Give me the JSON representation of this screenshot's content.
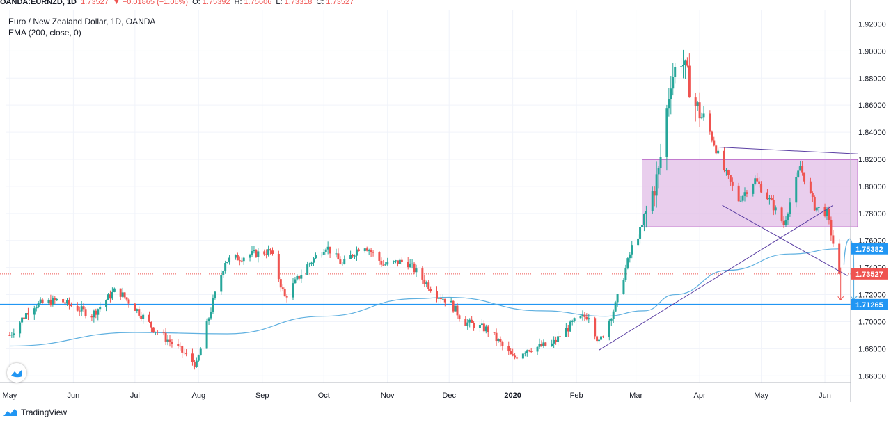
{
  "header": {
    "symbol": "OANDA:EURNZD, 1D",
    "last": "1.73527",
    "change": "▼ −0.01865 (−1.06%)",
    "o_label": "O:",
    "o": "1.75392",
    "h_label": "H:",
    "h": "1.75606",
    "l_label": "L:",
    "l": "1.73318",
    "c_label": "C:",
    "c": "1.73527"
  },
  "title": "Euro / New Zealand Dollar, 1D, OANDA",
  "indicator": "EMA (200, close, 0)",
  "footer": {
    "brand": "TradingView"
  },
  "colors": {
    "up": "#26a69a",
    "down": "#ef5350",
    "ema": "#5fb0e0",
    "support": "#2196f3",
    "box_fill": "#e1bee7",
    "box_stroke": "#9c27b0",
    "trendline": "#5b3fa3",
    "last_price_tag": "#ef5350",
    "ema_tag": "#2196f3"
  },
  "chart_data": {
    "type": "candlestick",
    "symbol": "EUR/NZD",
    "timeframe": "1D",
    "x_ticks": [
      "May",
      "Jun",
      "Jul",
      "Aug",
      "Sep",
      "Oct",
      "Nov",
      "Dec",
      "2020",
      "Feb",
      "Mar",
      "Apr",
      "May",
      "Jun"
    ],
    "y_ticks": [
      "1.92000",
      "1.90000",
      "1.88000",
      "1.86000",
      "1.84000",
      "1.82000",
      "1.80000",
      "1.78000",
      "1.76000",
      "1.74000",
      "1.72000",
      "1.70000",
      "1.68000",
      "1.66000"
    ],
    "ylim": [
      1.655,
      1.93
    ],
    "close_path": [
      [
        "2019-05-01",
        1.69
      ],
      [
        "2019-05-12",
        1.712
      ],
      [
        "2019-05-25",
        1.716
      ],
      [
        "2019-06-10",
        1.705
      ],
      [
        "2019-06-22",
        1.724
      ],
      [
        "2019-06-30",
        1.712
      ],
      [
        "2019-07-10",
        1.695
      ],
      [
        "2019-07-20",
        1.683
      ],
      [
        "2019-07-31",
        1.668
      ],
      [
        "2019-08-08",
        1.715
      ],
      [
        "2019-08-14",
        1.745
      ],
      [
        "2019-08-28",
        1.75
      ],
      [
        "2019-09-05",
        1.752
      ],
      [
        "2019-09-12",
        1.718
      ],
      [
        "2019-09-22",
        1.74
      ],
      [
        "2019-10-02",
        1.756
      ],
      [
        "2019-10-10",
        1.742
      ],
      [
        "2019-10-20",
        1.758
      ],
      [
        "2019-10-30",
        1.742
      ],
      [
        "2019-11-10",
        1.745
      ],
      [
        "2019-11-25",
        1.72
      ],
      [
        "2019-12-01",
        1.715
      ],
      [
        "2019-12-08",
        1.7
      ],
      [
        "2019-12-20",
        1.694
      ],
      [
        "2020-01-01",
        1.673
      ],
      [
        "2020-01-08",
        1.68
      ],
      [
        "2020-01-20",
        1.683
      ],
      [
        "2020-01-31",
        1.7
      ],
      [
        "2020-02-07",
        1.705
      ],
      [
        "2020-02-12",
        1.684
      ],
      [
        "2020-02-20",
        1.712
      ],
      [
        "2020-02-28",
        1.755
      ],
      [
        "2020-03-04",
        1.77
      ],
      [
        "2020-03-12",
        1.81
      ],
      [
        "2020-03-18",
        1.88
      ],
      [
        "2020-03-23",
        1.895
      ],
      [
        "2020-03-30",
        1.86
      ],
      [
        "2020-04-06",
        1.84
      ],
      [
        "2020-04-12",
        1.815
      ],
      [
        "2020-04-20",
        1.79
      ],
      [
        "2020-04-28",
        1.805
      ],
      [
        "2020-05-05",
        1.79
      ],
      [
        "2020-05-12",
        1.772
      ],
      [
        "2020-05-20",
        1.815
      ],
      [
        "2020-05-27",
        1.785
      ],
      [
        "2020-06-02",
        1.78
      ],
      [
        "2020-06-05",
        1.758
      ],
      [
        "2020-06-08",
        1.73527
      ]
    ],
    "ema_200": [
      [
        "2019-05-01",
        1.682
      ],
      [
        "2019-07-01",
        1.692
      ],
      [
        "2019-08-15",
        1.691
      ],
      [
        "2019-10-01",
        1.704
      ],
      [
        "2019-11-15",
        1.717
      ],
      [
        "2019-12-01",
        1.718
      ],
      [
        "2020-01-15",
        1.708
      ],
      [
        "2020-02-15",
        1.704
      ],
      [
        "2020-03-05",
        1.708
      ],
      [
        "2020-03-20",
        1.72
      ],
      [
        "2020-04-15",
        1.738
      ],
      [
        "2020-05-15",
        1.75
      ],
      [
        "2020-06-08",
        1.7538
      ]
    ],
    "annotations": {
      "rectangle": {
        "from": "2020-03-04",
        "to": "2020-06-17",
        "top": 1.82,
        "bottom": 1.77
      },
      "resistance_line": [
        [
          "2020-04-10",
          1.829
        ],
        [
          "2020-06-17",
          1.824
        ]
      ],
      "rising_trendline": [
        [
          "2020-02-12",
          1.679
        ],
        [
          "2020-06-05",
          1.786
        ]
      ],
      "falling_trendline": [
        [
          "2020-04-12",
          1.786
        ],
        [
          "2020-06-12",
          1.734
        ]
      ],
      "support_level": 1.71265
    },
    "price_tags": [
      {
        "label": "EMA",
        "value": "1.75382"
      },
      {
        "label": "Last",
        "value": "1.73527"
      },
      {
        "label": "Support",
        "value": "1.71265"
      }
    ]
  }
}
